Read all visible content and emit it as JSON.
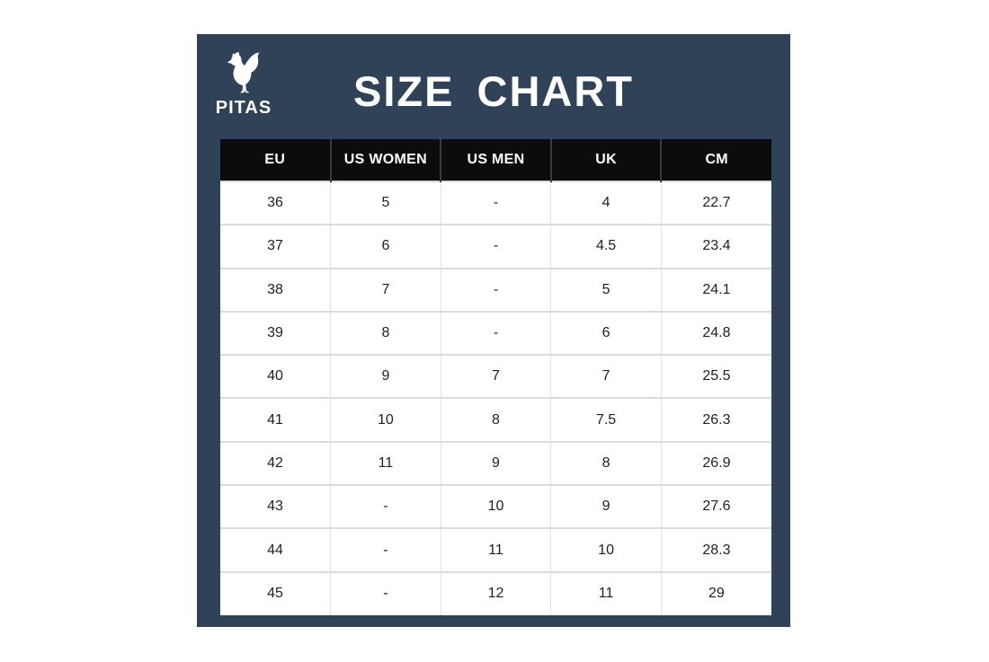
{
  "title": "SIZE CHART",
  "brand": {
    "name": "PITAS",
    "icon": "rooster-icon"
  },
  "chart_data": {
    "type": "table",
    "title": "SIZE CHART",
    "columns": [
      "EU",
      "US WOMEN",
      "US MEN",
      "UK",
      "CM"
    ],
    "rows": [
      [
        "36",
        "5",
        "-",
        "4",
        "22.7"
      ],
      [
        "37",
        "6",
        "-",
        "4.5",
        "23.4"
      ],
      [
        "38",
        "7",
        "-",
        "5",
        "24.1"
      ],
      [
        "39",
        "8",
        "-",
        "6",
        "24.8"
      ],
      [
        "40",
        "9",
        "7",
        "7",
        "25.5"
      ],
      [
        "41",
        "10",
        "8",
        "7.5",
        "26.3"
      ],
      [
        "42",
        "11",
        "9",
        "8",
        "26.9"
      ],
      [
        "43",
        "-",
        "10",
        "9",
        "27.6"
      ],
      [
        "44",
        "-",
        "11",
        "10",
        "28.3"
      ],
      [
        "45",
        "-",
        "12",
        "11",
        "29"
      ]
    ]
  },
  "colors": {
    "panel_navy": "#304257",
    "header_black": "#0e0b0c",
    "header_sep": "#3e3a3b",
    "row_border": "#d9dbdd",
    "col_border": "#e1e2e4",
    "body_text": "#1f1f1f",
    "page_background": "#ffffff"
  }
}
